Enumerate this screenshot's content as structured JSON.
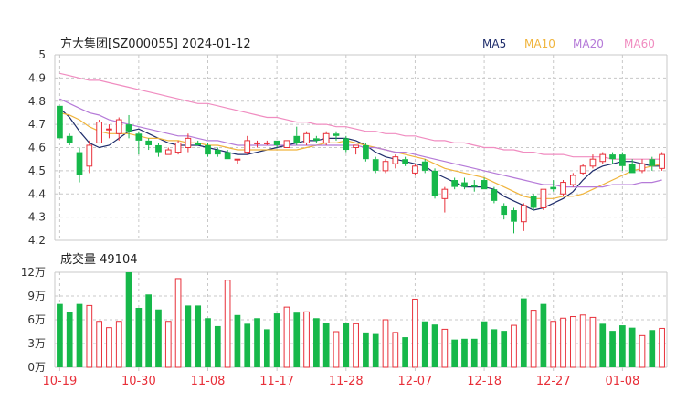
{
  "header": {
    "title": "方大集团[SZ000055] 2024-01-12",
    "legend": [
      {
        "label": "MA5",
        "color": "#1f2d6b"
      },
      {
        "label": "MA10",
        "color": "#f0b43c"
      },
      {
        "label": "MA20",
        "color": "#b57ad8"
      },
      {
        "label": "MA60",
        "color": "#f08cc0"
      }
    ]
  },
  "volume_panel": {
    "label": "成交量 49104",
    "y_tick_labels": [
      "12万",
      "9万",
      "6万",
      "3万",
      "0万"
    ]
  },
  "colors": {
    "up": "#e8303a",
    "down": "#16b84a",
    "grid": "#c8c8c8",
    "axis_text": "#333333",
    "date_text": "#e8303a"
  },
  "chart_data": [
    {
      "type": "candlestick",
      "title": "方大集团[SZ000055] 2024-01-12",
      "ylim": [
        4.2,
        5.0
      ],
      "y_ticks": [
        4.2,
        4.3,
        4.4,
        4.5,
        4.6,
        4.7,
        4.8,
        4.9,
        5.0
      ],
      "x_tick_labels": [
        "10-19",
        "10-30",
        "11-08",
        "11-17",
        "11-28",
        "12-07",
        "12-18",
        "12-27",
        "01-08"
      ],
      "x_tick_indices": [
        0,
        8,
        15,
        22,
        29,
        36,
        43,
        50,
        57
      ],
      "grid": true,
      "legend_position": "top-right",
      "candles": [
        {
          "date": "10-19",
          "open": 4.78,
          "high": 4.78,
          "low": 4.64,
          "close": 4.64
        },
        {
          "date": "",
          "open": 4.65,
          "high": 4.66,
          "low": 4.61,
          "close": 4.62
        },
        {
          "date": "",
          "open": 4.58,
          "high": 4.6,
          "low": 4.45,
          "close": 4.48
        },
        {
          "date": "",
          "open": 4.52,
          "high": 4.63,
          "low": 4.49,
          "close": 4.61
        },
        {
          "date": "",
          "open": 4.62,
          "high": 4.72,
          "low": 4.62,
          "close": 4.71
        },
        {
          "date": "",
          "open": 4.68,
          "high": 4.7,
          "low": 4.64,
          "close": 4.68
        },
        {
          "date": "",
          "open": 4.66,
          "high": 4.73,
          "low": 4.63,
          "close": 4.72
        },
        {
          "date": "",
          "open": 4.7,
          "high": 4.74,
          "low": 4.64,
          "close": 4.67
        },
        {
          "date": "10-30",
          "open": 4.66,
          "high": 4.67,
          "low": 4.57,
          "close": 4.63
        },
        {
          "date": "",
          "open": 4.63,
          "high": 4.64,
          "low": 4.59,
          "close": 4.61
        },
        {
          "date": "",
          "open": 4.61,
          "high": 4.62,
          "low": 4.56,
          "close": 4.58
        },
        {
          "date": "",
          "open": 4.57,
          "high": 4.6,
          "low": 4.57,
          "close": 4.59
        },
        {
          "date": "",
          "open": 4.58,
          "high": 4.63,
          "low": 4.57,
          "close": 4.62
        },
        {
          "date": "",
          "open": 4.6,
          "high": 4.66,
          "low": 4.58,
          "close": 4.64
        },
        {
          "date": "",
          "open": 4.62,
          "high": 4.63,
          "low": 4.61,
          "close": 4.61
        },
        {
          "date": "11-08",
          "open": 4.61,
          "high": 4.62,
          "low": 4.56,
          "close": 4.57
        },
        {
          "date": "",
          "open": 4.59,
          "high": 4.6,
          "low": 4.56,
          "close": 4.57
        },
        {
          "date": "",
          "open": 4.58,
          "high": 4.59,
          "low": 4.55,
          "close": 4.55
        },
        {
          "date": "",
          "open": 4.55,
          "high": 4.55,
          "low": 4.53,
          "close": 4.55
        },
        {
          "date": "",
          "open": 4.58,
          "high": 4.65,
          "low": 4.57,
          "close": 4.63
        },
        {
          "date": "",
          "open": 4.62,
          "high": 4.63,
          "low": 4.6,
          "close": 4.62
        },
        {
          "date": "",
          "open": 4.62,
          "high": 4.63,
          "low": 4.61,
          "close": 4.62
        },
        {
          "date": "11-17",
          "open": 4.63,
          "high": 4.63,
          "low": 4.6,
          "close": 4.61
        },
        {
          "date": "",
          "open": 4.6,
          "high": 4.63,
          "low": 4.6,
          "close": 4.63
        },
        {
          "date": "",
          "open": 4.65,
          "high": 4.69,
          "low": 4.61,
          "close": 4.62
        },
        {
          "date": "",
          "open": 4.62,
          "high": 4.67,
          "low": 4.61,
          "close": 4.66
        },
        {
          "date": "",
          "open": 4.64,
          "high": 4.65,
          "low": 4.62,
          "close": 4.63
        },
        {
          "date": "",
          "open": 4.62,
          "high": 4.67,
          "low": 4.61,
          "close": 4.66
        },
        {
          "date": "",
          "open": 4.66,
          "high": 4.67,
          "low": 4.63,
          "close": 4.65
        },
        {
          "date": "11-28",
          "open": 4.64,
          "high": 4.65,
          "low": 4.58,
          "close": 4.59
        },
        {
          "date": "",
          "open": 4.6,
          "high": 4.61,
          "low": 4.57,
          "close": 4.61
        },
        {
          "date": "",
          "open": 4.61,
          "high": 4.62,
          "low": 4.54,
          "close": 4.55
        },
        {
          "date": "",
          "open": 4.55,
          "high": 4.56,
          "low": 4.49,
          "close": 4.5
        },
        {
          "date": "",
          "open": 4.5,
          "high": 4.55,
          "low": 4.49,
          "close": 4.54
        },
        {
          "date": "",
          "open": 4.53,
          "high": 4.57,
          "low": 4.51,
          "close": 4.56
        },
        {
          "date": "",
          "open": 4.55,
          "high": 4.56,
          "low": 4.52,
          "close": 4.53
        },
        {
          "date": "12-07",
          "open": 4.49,
          "high": 4.53,
          "low": 4.48,
          "close": 4.52
        },
        {
          "date": "",
          "open": 4.54,
          "high": 4.55,
          "low": 4.49,
          "close": 4.5
        },
        {
          "date": "",
          "open": 4.5,
          "high": 4.51,
          "low": 4.38,
          "close": 4.39
        },
        {
          "date": "",
          "open": 4.38,
          "high": 4.43,
          "low": 4.32,
          "close": 4.42
        },
        {
          "date": "",
          "open": 4.46,
          "high": 4.47,
          "low": 4.42,
          "close": 4.43
        },
        {
          "date": "",
          "open": 4.45,
          "high": 4.47,
          "low": 4.42,
          "close": 4.43
        },
        {
          "date": "",
          "open": 4.44,
          "high": 4.46,
          "low": 4.41,
          "close": 4.43
        },
        {
          "date": "12-18",
          "open": 4.46,
          "high": 4.47,
          "low": 4.42,
          "close": 4.42
        },
        {
          "date": "",
          "open": 4.42,
          "high": 4.43,
          "low": 4.36,
          "close": 4.37
        },
        {
          "date": "",
          "open": 4.35,
          "high": 4.36,
          "low": 4.29,
          "close": 4.31
        },
        {
          "date": "",
          "open": 4.33,
          "high": 4.34,
          "low": 4.23,
          "close": 4.28
        },
        {
          "date": "",
          "open": 4.28,
          "high": 4.36,
          "low": 4.24,
          "close": 4.35
        },
        {
          "date": "",
          "open": 4.39,
          "high": 4.4,
          "low": 4.33,
          "close": 4.34
        },
        {
          "date": "",
          "open": 4.34,
          "high": 4.42,
          "low": 4.33,
          "close": 4.42
        },
        {
          "date": "12-27",
          "open": 4.43,
          "high": 4.46,
          "low": 4.41,
          "close": 4.42
        },
        {
          "date": "",
          "open": 4.4,
          "high": 4.46,
          "low": 4.39,
          "close": 4.45
        },
        {
          "date": "",
          "open": 4.44,
          "high": 4.49,
          "low": 4.43,
          "close": 4.48
        },
        {
          "date": "",
          "open": 4.49,
          "high": 4.53,
          "low": 4.48,
          "close": 4.52
        },
        {
          "date": "",
          "open": 4.52,
          "high": 4.57,
          "low": 4.51,
          "close": 4.55
        },
        {
          "date": "",
          "open": 4.54,
          "high": 4.58,
          "low": 4.53,
          "close": 4.57
        },
        {
          "date": "",
          "open": 4.57,
          "high": 4.58,
          "low": 4.53,
          "close": 4.55
        },
        {
          "date": "01-08",
          "open": 4.57,
          "high": 4.58,
          "low": 4.5,
          "close": 4.52
        },
        {
          "date": "",
          "open": 4.53,
          "high": 4.55,
          "low": 4.49,
          "close": 4.49
        },
        {
          "date": "",
          "open": 4.5,
          "high": 4.55,
          "low": 4.49,
          "close": 4.53
        },
        {
          "date": "",
          "open": 4.55,
          "high": 4.56,
          "low": 4.5,
          "close": 4.52
        },
        {
          "date": "01-12",
          "open": 4.51,
          "high": 4.58,
          "low": 4.5,
          "close": 4.57
        }
      ],
      "ma_series": [
        {
          "name": "MA5",
          "color": "#1f2d6b",
          "values": [
            4.77,
            4.73,
            4.67,
            4.62,
            4.6,
            4.61,
            4.64,
            4.67,
            4.68,
            4.66,
            4.64,
            4.62,
            4.61,
            4.61,
            4.61,
            4.6,
            4.59,
            4.58,
            4.57,
            4.57,
            4.58,
            4.59,
            4.6,
            4.61,
            4.62,
            4.63,
            4.63,
            4.64,
            4.64,
            4.64,
            4.63,
            4.61,
            4.58,
            4.56,
            4.55,
            4.54,
            4.53,
            4.52,
            4.49,
            4.47,
            4.45,
            4.43,
            4.43,
            4.43,
            4.42,
            4.39,
            4.37,
            4.35,
            4.33,
            4.34,
            4.36,
            4.38,
            4.41,
            4.46,
            4.5,
            4.52,
            4.53,
            4.54,
            4.54,
            4.53,
            4.52,
            4.52
          ]
        },
        {
          "name": "MA10",
          "color": "#f0b43c",
          "values": [
            4.75,
            4.74,
            4.72,
            4.69,
            4.67,
            4.66,
            4.66,
            4.66,
            4.65,
            4.64,
            4.64,
            4.63,
            4.63,
            4.62,
            4.62,
            4.61,
            4.61,
            4.6,
            4.59,
            4.59,
            4.59,
            4.59,
            4.59,
            4.59,
            4.59,
            4.6,
            4.61,
            4.62,
            4.62,
            4.63,
            4.62,
            4.61,
            4.6,
            4.59,
            4.58,
            4.57,
            4.56,
            4.55,
            4.53,
            4.51,
            4.5,
            4.49,
            4.48,
            4.47,
            4.45,
            4.43,
            4.41,
            4.39,
            4.38,
            4.38,
            4.38,
            4.39,
            4.39,
            4.4,
            4.42,
            4.44,
            4.46,
            4.48,
            4.5,
            4.51,
            4.52,
            4.53
          ]
        },
        {
          "name": "MA20",
          "color": "#b57ad8",
          "values": [
            4.81,
            4.79,
            4.77,
            4.75,
            4.74,
            4.72,
            4.71,
            4.7,
            4.69,
            4.68,
            4.67,
            4.66,
            4.65,
            4.65,
            4.64,
            4.63,
            4.63,
            4.62,
            4.61,
            4.61,
            4.61,
            4.61,
            4.61,
            4.61,
            4.61,
            4.61,
            4.61,
            4.61,
            4.61,
            4.61,
            4.61,
            4.6,
            4.6,
            4.59,
            4.58,
            4.58,
            4.57,
            4.56,
            4.55,
            4.54,
            4.53,
            4.52,
            4.51,
            4.5,
            4.49,
            4.48,
            4.47,
            4.46,
            4.45,
            4.44,
            4.44,
            4.43,
            4.43,
            4.43,
            4.43,
            4.43,
            4.44,
            4.44,
            4.44,
            4.45,
            4.45,
            4.46
          ]
        },
        {
          "name": "MA60",
          "color": "#f08cc0",
          "values": [
            4.92,
            4.91,
            4.9,
            4.89,
            4.89,
            4.88,
            4.87,
            4.86,
            4.85,
            4.84,
            4.83,
            4.82,
            4.81,
            4.8,
            4.79,
            4.79,
            4.78,
            4.77,
            4.76,
            4.75,
            4.74,
            4.73,
            4.73,
            4.72,
            4.71,
            4.71,
            4.7,
            4.7,
            4.69,
            4.69,
            4.68,
            4.67,
            4.67,
            4.66,
            4.66,
            4.65,
            4.65,
            4.64,
            4.63,
            4.63,
            4.62,
            4.62,
            4.61,
            4.6,
            4.6,
            4.59,
            4.59,
            4.58,
            4.58,
            4.57,
            4.57,
            4.57,
            4.56,
            4.56,
            4.56,
            4.56,
            4.55,
            4.55,
            4.55,
            4.55,
            4.55,
            4.55
          ]
        }
      ]
    },
    {
      "type": "bar",
      "title": "成交量 49104",
      "ylim": [
        0,
        120000
      ],
      "y_ticks": [
        0,
        30000,
        60000,
        90000,
        120000
      ],
      "y_tick_labels": [
        "0万",
        "3万",
        "6万",
        "9万",
        "12万"
      ],
      "grid": true,
      "values": [
        80000,
        70000,
        80000,
        78000,
        58000,
        50000,
        58000,
        120000,
        75000,
        92000,
        73000,
        58000,
        112000,
        78000,
        78000,
        62000,
        52000,
        110000,
        66000,
        55000,
        62000,
        48000,
        68000,
        76000,
        69000,
        70000,
        62000,
        56000,
        45000,
        56000,
        55000,
        44000,
        42000,
        60000,
        44000,
        38000,
        86000,
        58000,
        54000,
        48000,
        35000,
        36000,
        36000,
        58000,
        48000,
        46000,
        53000,
        87000,
        72000,
        80000,
        58000,
        62000,
        64000,
        66000,
        63000,
        55000,
        46000,
        53000,
        50000,
        40000,
        47000,
        49104
      ],
      "up": [
        false,
        false,
        false,
        true,
        true,
        true,
        true,
        false,
        false,
        false,
        false,
        true,
        true,
        false,
        false,
        false,
        false,
        true,
        false,
        false,
        false,
        false,
        false,
        true,
        false,
        true,
        false,
        false,
        true,
        false,
        true,
        false,
        false,
        true,
        true,
        false,
        true,
        false,
        false,
        true,
        false,
        false,
        false,
        false,
        false,
        false,
        true,
        false,
        true,
        false,
        true,
        true,
        true,
        true,
        true,
        false,
        false,
        false,
        false,
        true,
        false,
        true
      ]
    }
  ]
}
